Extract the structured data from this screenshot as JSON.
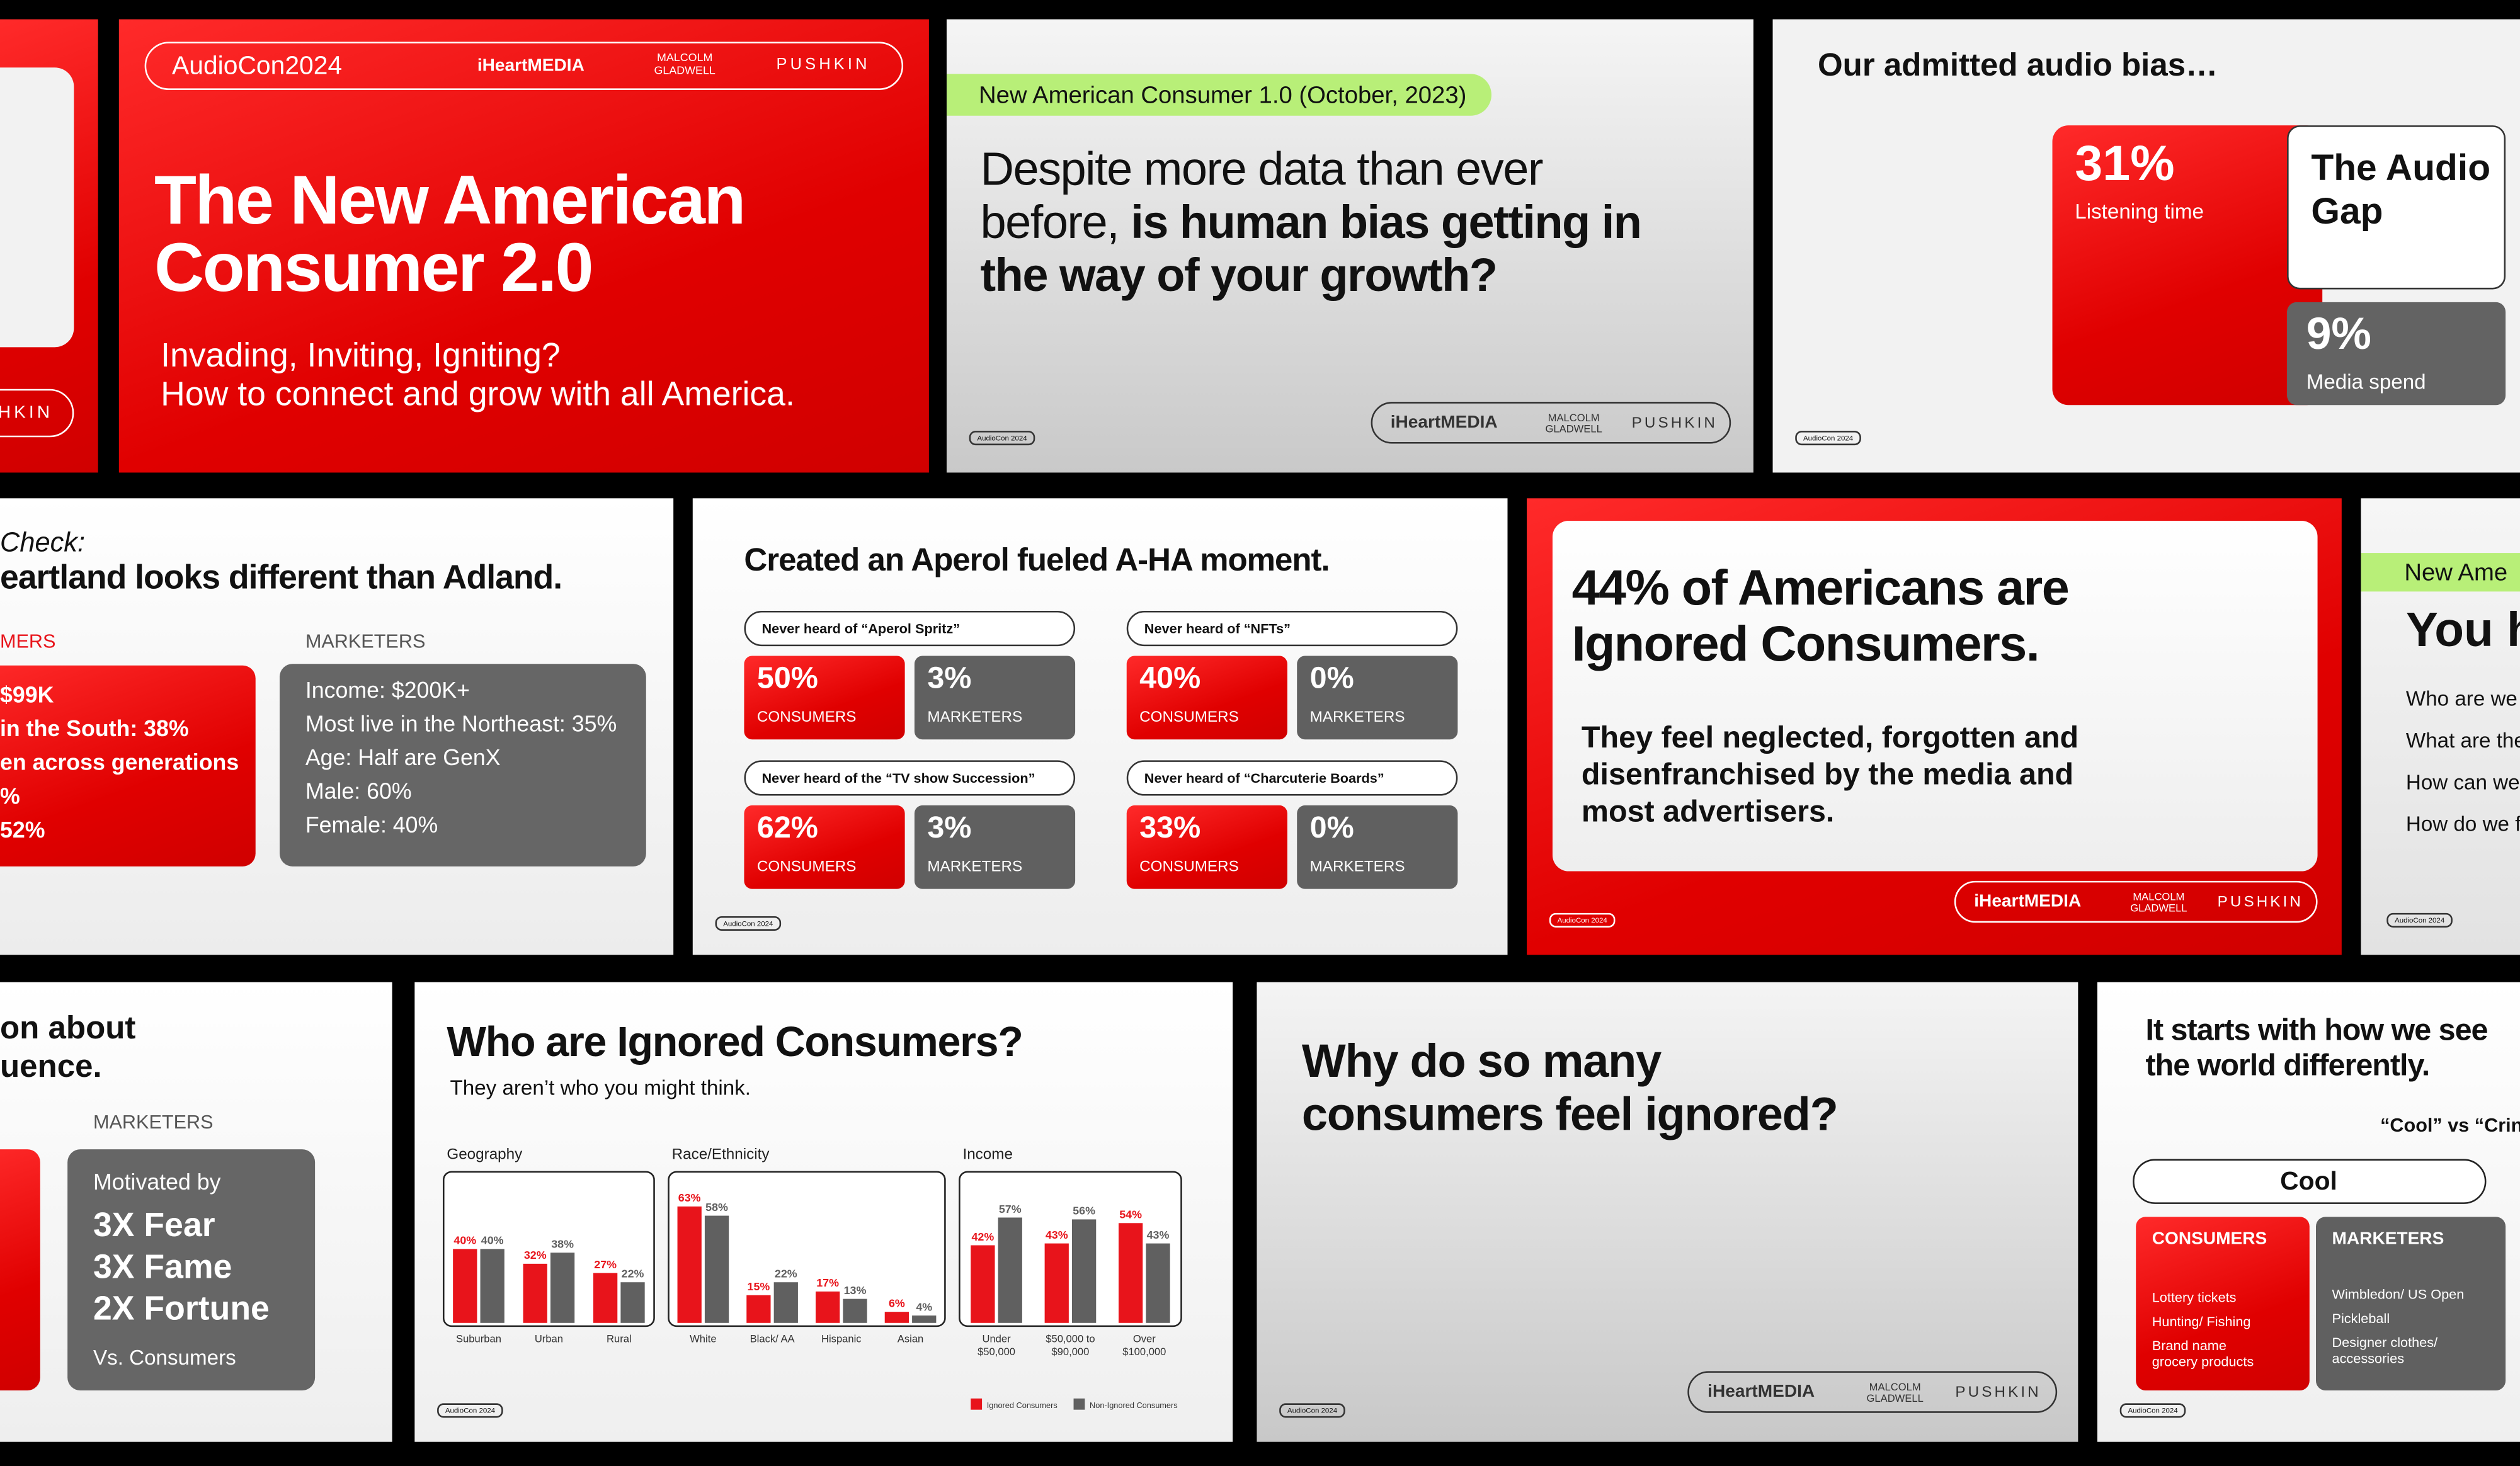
{
  "cropped_left_slide": {
    "logo": "PUSHKIN"
  },
  "title_slide": {
    "event": "AudioCon2024",
    "logos": [
      "iHeartMEDIA",
      "MALCOLM\nGLADWELL",
      "PUSHKIN"
    ],
    "title": "The New American Consumer 2.0",
    "subtitle": [
      "Invading, Inviting, Igniting?",
      "How to connect and grow with all America."
    ]
  },
  "bias_question_slide": {
    "tag": "New American Consumer 1.0 (October, 2023)",
    "headline": "Despite more data than ever before, ",
    "headline_bold": "is human bias getting in the way of your growth?",
    "logos": [
      "iHeartMEDIA",
      "MALCOLM\nGLADWELL",
      "PUSHKIN"
    ],
    "footer": "AudioCon 2024"
  },
  "audio_bias_slide": {
    "title": "Our admitted audio bias…",
    "listening_value": "31%",
    "listening_label": "Listening time",
    "gap": "The Audio Gap",
    "media_value": "9%",
    "media_label": "Media spend",
    "footer": "AudioCon 2024"
  },
  "heartland_slide": {
    "title_lines": [
      "Check:",
      "eartland looks different than Adland."
    ],
    "consumers_heading": "MERS",
    "consumers_items": [
      "$99K",
      "in the South: 38%",
      "en across generations",
      "%",
      "52%"
    ],
    "marketers_heading": "MARKETERS",
    "marketers_items": [
      "Income: $200K+",
      "Most live in the Northeast: 35%",
      "Age: Half are GenX",
      "Male: 60%",
      "Female: 40%"
    ]
  },
  "aperol_slide": {
    "title": "Created an Aperol fueled A-HA moment.",
    "consumers_label": "CONSUMERS",
    "marketers_label": "MARKETERS",
    "blocks": [
      {
        "question": "Never heard of “Aperol Spritz”",
        "consumers": "50%",
        "marketers": "3%"
      },
      {
        "question": "Never heard of “NFTs”",
        "consumers": "40%",
        "marketers": "0%"
      },
      {
        "question": "Never heard of the “TV show Succession”",
        "consumers": "62%",
        "marketers": "3%"
      },
      {
        "question": "Never heard of “Charcuterie Boards”",
        "consumers": "33%",
        "marketers": "0%"
      }
    ],
    "footer": "AudioCon 2024"
  },
  "ignored_slide": {
    "title": "44% of Americans are Ignored Consumers.",
    "body": "They feel neglected, forgotten and disenfranchised by the media and most advertisers.",
    "logos": [
      "iHeartMEDIA",
      "MALCOLM\nGLADWELL",
      "PUSHKIN"
    ],
    "footer": "AudioCon 2024"
  },
  "cropped_right_slide": {
    "tag": "New Ame",
    "title": "You h",
    "lines": [
      "Who are we",
      "What are the",
      "How can we",
      "How do we f"
    ],
    "footer": "AudioCon 2024"
  },
  "motivation_slide": {
    "title_lines": [
      "on about",
      "uence."
    ],
    "heading": "MARKETERS",
    "motivated": "Motivated by",
    "items": [
      "3X Fear",
      "3X Fame",
      "2X Fortune"
    ],
    "versus": "Vs. Consumers"
  },
  "who_slide": {
    "title": "Who are Ignored Consumers?",
    "subtitle": "They aren’t who you might think.",
    "panels": [
      {
        "title": "Geography",
        "categories": [
          "Suburban",
          "Urban",
          "Rural"
        ],
        "series": [
          {
            "name": "Ignored Consumers",
            "color": "#e8141b",
            "values": [
              40,
              32,
              27
            ],
            "value_labels": [
              "40%",
              "32%",
              "27%"
            ]
          },
          {
            "name": "Non-Ignored Consumers",
            "color": "#606060",
            "values": [
              40,
              38,
              22
            ],
            "value_labels": [
              "40%",
              "38%",
              "22%"
            ]
          }
        ]
      },
      {
        "title": "Race/Ethnicity",
        "categories": [
          "White",
          "Black/ AA",
          "Hispanic",
          "Asian"
        ],
        "series": [
          {
            "name": "Ignored Consumers",
            "color": "#e8141b",
            "values": [
              63,
              15,
              17,
              6
            ],
            "value_labels": [
              "63%",
              "15%",
              "17%",
              "6%"
            ]
          },
          {
            "name": "Non-Ignored Consumers",
            "color": "#606060",
            "values": [
              58,
              22,
              13,
              4
            ],
            "value_labels": [
              "58%",
              "22%",
              "13%",
              "4%"
            ]
          }
        ]
      },
      {
        "title": "Income",
        "categories": [
          "Under\n$50,000",
          "$50,000 to\n$90,000",
          "Over\n$100,000"
        ],
        "series": [
          {
            "name": "Ignored Consumers",
            "color": "#e8141b",
            "values": [
              42,
              43,
              54
            ],
            "value_labels": [
              "42%",
              "43%",
              "54%"
            ]
          },
          {
            "name": "Non-Ignored Consumers",
            "color": "#606060",
            "values": [
              57,
              56,
              43
            ],
            "value_labels": [
              "57%",
              "56%",
              "43%"
            ]
          }
        ]
      }
    ],
    "footer": "AudioCon 2024"
  },
  "why_slide": {
    "title": "Why do so many consumers feel ignored?",
    "logos": [
      "iHeartMEDIA",
      "MALCOLM\nGLADWELL",
      "PUSHKIN"
    ],
    "footer": "AudioCon 2024"
  },
  "cool_slide": {
    "title": "It starts with how we see the world differently.",
    "versus": "“Cool” vs “Cring",
    "pill": "Cool",
    "consumers_heading": "CONSUMERS",
    "consumers_items": [
      "Lottery tickets",
      "Hunting/ Fishing",
      "Brand name\ngrocery products"
    ],
    "marketers_heading": "MARKETERS",
    "marketers_items": [
      "Wimbledon/ US Open",
      "Pickleball",
      "Designer clothes/\naccessories"
    ],
    "footer": "AudioCon 2024"
  }
}
